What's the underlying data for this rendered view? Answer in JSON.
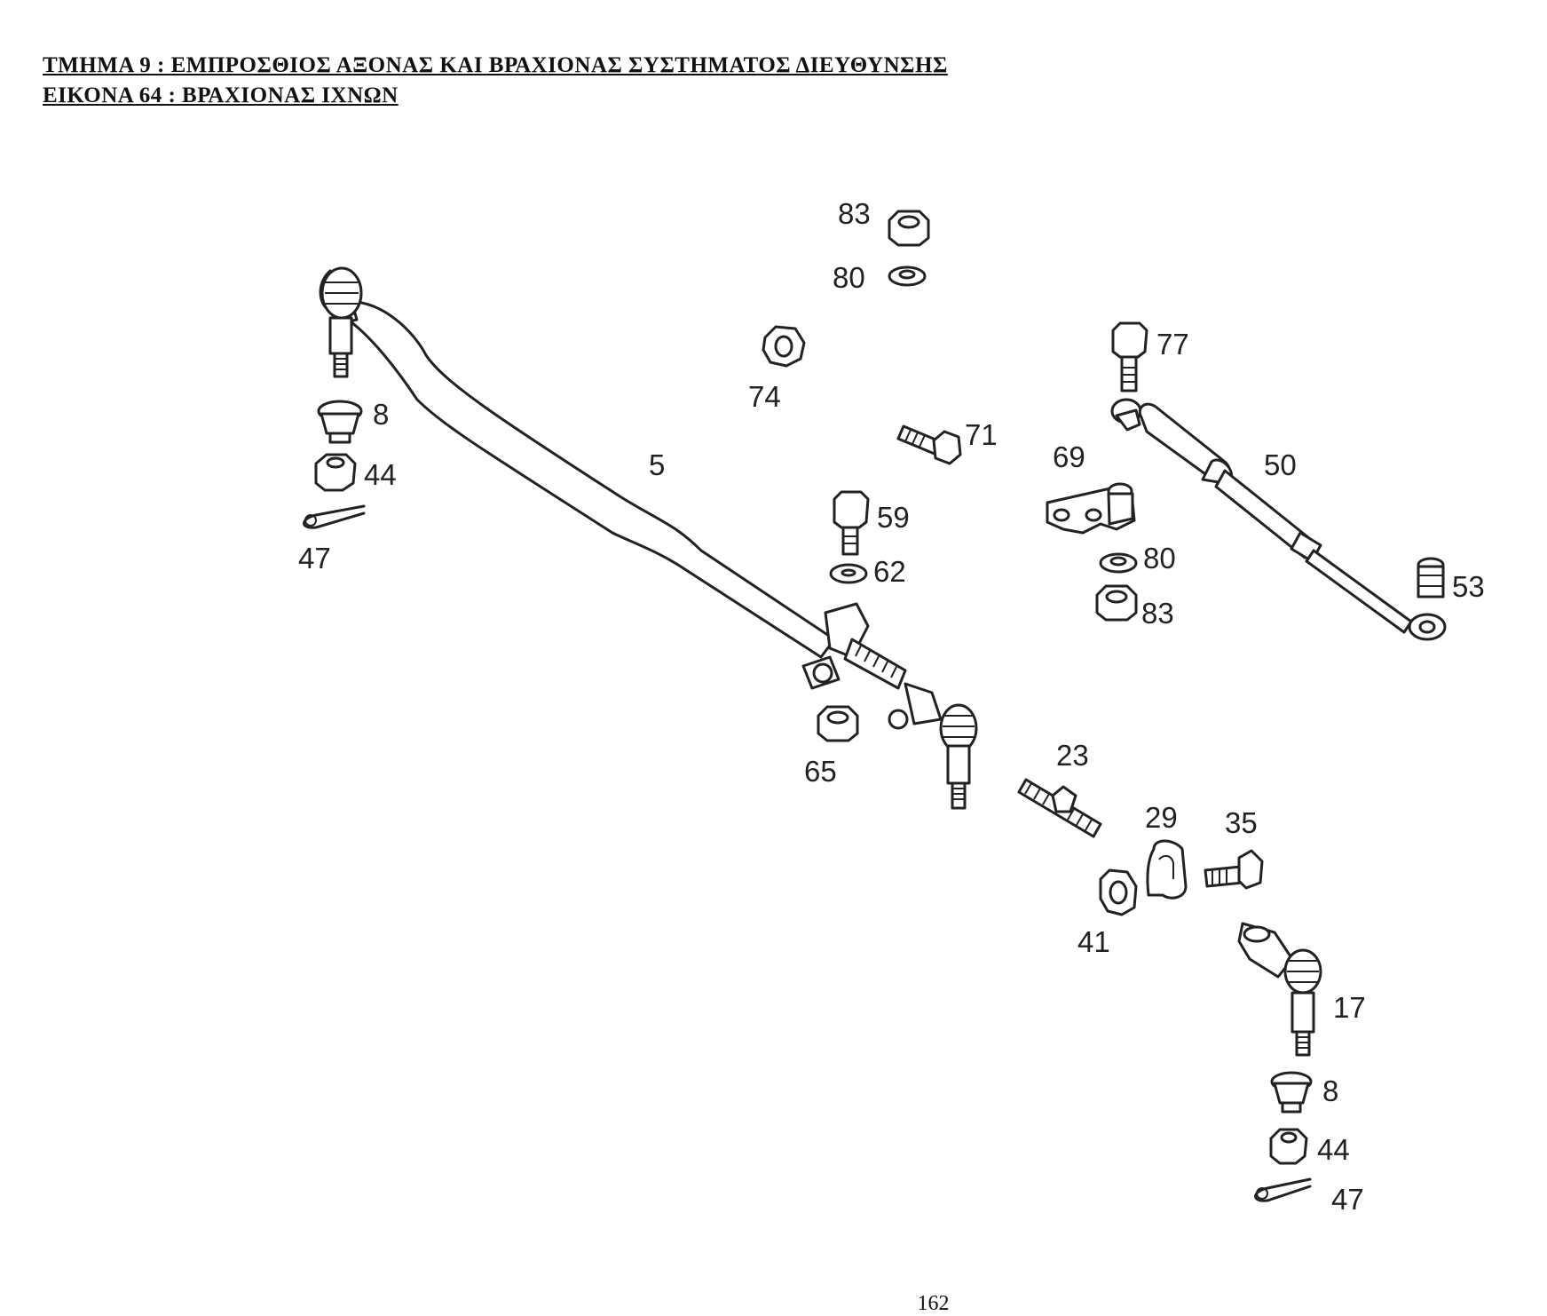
{
  "header": {
    "section": "ΤΜΗΜΑ  9  : ΕΜΠΡΟΣΘΙΟΣ ΑΞΟΝΑΣ ΚΑΙ ΒΡΑΧΙΟΝΑΣ ΣΥΣΤΗΜΑΤΟΣ ΔΙΕΥΘΥΝΣΗΣ",
    "figure": "ΕΙΚΟΝΑ 64 :  ΒΡΑΧΙΟΝΑΣ ΙΧΝΩΝ"
  },
  "callouts": {
    "c83a": "83",
    "c80a": "80",
    "c74": "74",
    "c77": "77",
    "c71": "71",
    "c69": "69",
    "c50": "50",
    "c5": "5",
    "c8a": "8",
    "c44a": "44",
    "c47a": "47",
    "c59": "59",
    "c62": "62",
    "c80b": "80",
    "c83b": "83",
    "c53": "53",
    "c65": "65",
    "c23": "23",
    "c29": "29",
    "c35": "35",
    "c41": "41",
    "c17": "17",
    "c8b": "8",
    "c44b": "44",
    "c47b": "47"
  },
  "page_number": "162"
}
